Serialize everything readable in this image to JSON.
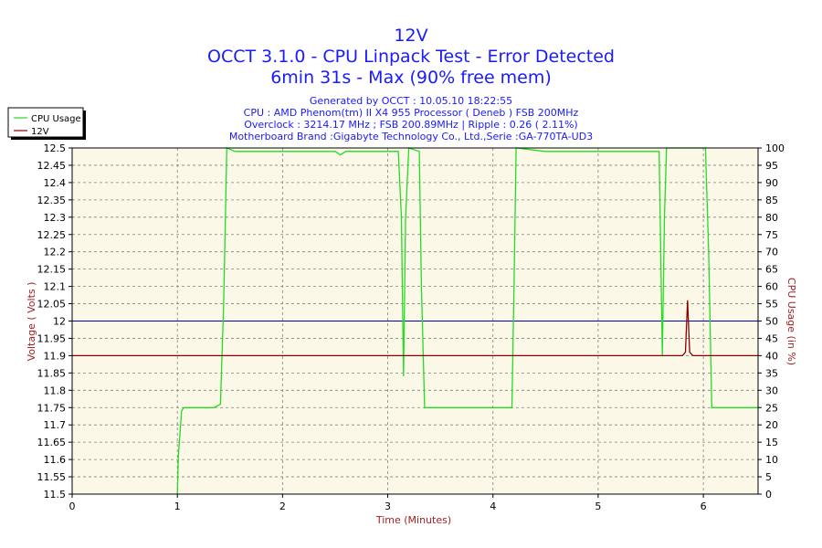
{
  "chart_data": {
    "type": "line",
    "title": "12V",
    "subtitle_lines": [
      "OCCT 3.1.0 - CPU Linpack Test - Error Detected",
      "6min 31s - Max (90% free mem)"
    ],
    "info_lines": [
      "Generated by OCCT : 10.05.10 18:22:55",
      "CPU : AMD Phenom(tm) II X4 955 Processor ( Deneb ) FSB 200MHz",
      "Overclock : 3214.17 MHz ; FSB 200.89MHz | Ripple : 0.26 ( 2.11%)",
      "Motherboard Brand :Gigabyte Technology Co., Ltd.,Serie :GA-770TA-UD3"
    ],
    "xlabel": "Time (Minutes)",
    "ylabel_left": "Voltage ( Volts )",
    "ylabel_right": "CPU Usage (in %)",
    "xlim": [
      0,
      6.52
    ],
    "ylim_left": [
      11.5,
      12.5
    ],
    "ylim_right": [
      0,
      100
    ],
    "x_ticks": [
      "0",
      "1",
      "2",
      "3",
      "4",
      "5",
      "6"
    ],
    "y_left_ticks": [
      "11.5",
      "11.55",
      "11.6",
      "11.65",
      "11.7",
      "11.75",
      "11.8",
      "11.85",
      "11.9",
      "11.95",
      "12",
      "12.05",
      "12.1",
      "12.15",
      "12.2",
      "12.25",
      "12.3",
      "12.35",
      "12.4",
      "12.45",
      "12.5"
    ],
    "y_right_ticks": [
      "0",
      "5",
      "10",
      "15",
      "20",
      "25",
      "30",
      "35",
      "40",
      "45",
      "50",
      "55",
      "60",
      "65",
      "70",
      "75",
      "80",
      "85",
      "90",
      "95",
      "100"
    ],
    "reference_line": {
      "value": 12.0,
      "color": "#0000c0"
    },
    "grid": true,
    "legend_position": "top-left",
    "colors": {
      "plot_background": "#fbf8e8",
      "grid": "#808080",
      "cpu_usage": "#22dd22",
      "voltage": "#8b0000",
      "title": "#1a1aff",
      "axis_label": "#a02020"
    },
    "series": [
      {
        "name": "CPU Usage",
        "axis": "right",
        "color": "#22dd22",
        "points": [
          [
            1.0,
            0
          ],
          [
            1.01,
            11
          ],
          [
            1.04,
            24
          ],
          [
            1.06,
            25
          ],
          [
            1.2,
            25
          ],
          [
            1.35,
            25
          ],
          [
            1.41,
            26
          ],
          [
            1.44,
            55
          ],
          [
            1.47,
            100
          ],
          [
            1.55,
            99
          ],
          [
            2.0,
            99
          ],
          [
            2.5,
            99
          ],
          [
            2.55,
            98
          ],
          [
            2.6,
            99
          ],
          [
            3.0,
            99
          ],
          [
            3.1,
            99
          ],
          [
            3.13,
            80
          ],
          [
            3.15,
            34
          ],
          [
            3.17,
            80
          ],
          [
            3.2,
            100
          ],
          [
            3.3,
            99
          ],
          [
            3.32,
            60
          ],
          [
            3.35,
            25
          ],
          [
            3.5,
            25
          ],
          [
            4.0,
            25
          ],
          [
            4.18,
            25
          ],
          [
            4.2,
            60
          ],
          [
            4.22,
            100
          ],
          [
            4.5,
            99
          ],
          [
            5.0,
            99
          ],
          [
            5.5,
            99
          ],
          [
            5.58,
            99
          ],
          [
            5.61,
            40
          ],
          [
            5.63,
            80
          ],
          [
            5.65,
            100
          ],
          [
            5.75,
            100
          ],
          [
            6.02,
            100
          ],
          [
            6.05,
            70
          ],
          [
            6.08,
            25
          ],
          [
            6.52,
            25
          ]
        ]
      },
      {
        "name": "12V",
        "axis": "left",
        "color": "#8b0000",
        "points": [
          [
            0,
            11.9
          ],
          [
            5.8,
            11.9
          ],
          [
            5.83,
            11.91
          ],
          [
            5.85,
            12.06
          ],
          [
            5.87,
            11.91
          ],
          [
            5.9,
            11.9
          ],
          [
            6.52,
            11.9
          ]
        ]
      }
    ]
  }
}
